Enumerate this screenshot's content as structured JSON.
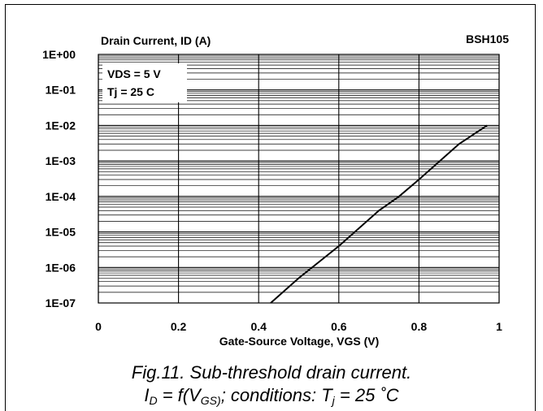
{
  "chart_data": {
    "type": "line",
    "ylabel": "Drain Current, ID (A)",
    "xlabel": "Gate-Source Voltage, VGS (V)",
    "part_label": "BSH105",
    "y_scale": "log",
    "xlim": [
      0,
      1
    ],
    "ylim": [
      1e-07,
      1
    ],
    "x_ticks": [
      0,
      0.2,
      0.4,
      0.6,
      0.8,
      1
    ],
    "x_tick_labels": [
      "0",
      "0.2",
      "0.4",
      "0.6",
      "0.8",
      "1"
    ],
    "y_ticks": [
      1,
      0.1,
      0.01,
      0.001,
      0.0001,
      1e-05,
      1e-06,
      1e-07
    ],
    "y_tick_labels": [
      "1E+00",
      "1E-01",
      "1E-02",
      "1E-03",
      "1E-04",
      "1E-05",
      "1E-06",
      "1E-07"
    ],
    "grid": true,
    "annotations": [
      "VDS = 5 V",
      "Tj = 25 C"
    ],
    "series": [
      {
        "x": [
          0.43,
          0.5,
          0.6,
          0.7,
          0.75,
          0.8,
          0.9,
          0.97
        ],
        "y": [
          1e-07,
          5e-07,
          4e-06,
          4e-05,
          0.0001,
          0.0003,
          0.003,
          0.01
        ]
      }
    ]
  },
  "caption": {
    "line1": "Fig.11.   Sub-threshold drain current.",
    "line2_id": "I",
    "line2_id_sub": "D",
    "line2_mid": " = f(V",
    "line2_vgs_sub": "GS)",
    "line2_cond": "; conditions: T",
    "line2_tj_sub": "j",
    "line2_end": " = 25 ˚C"
  },
  "colors": {
    "line": "#000000",
    "grid": "#000000",
    "background": "#ffffff"
  }
}
